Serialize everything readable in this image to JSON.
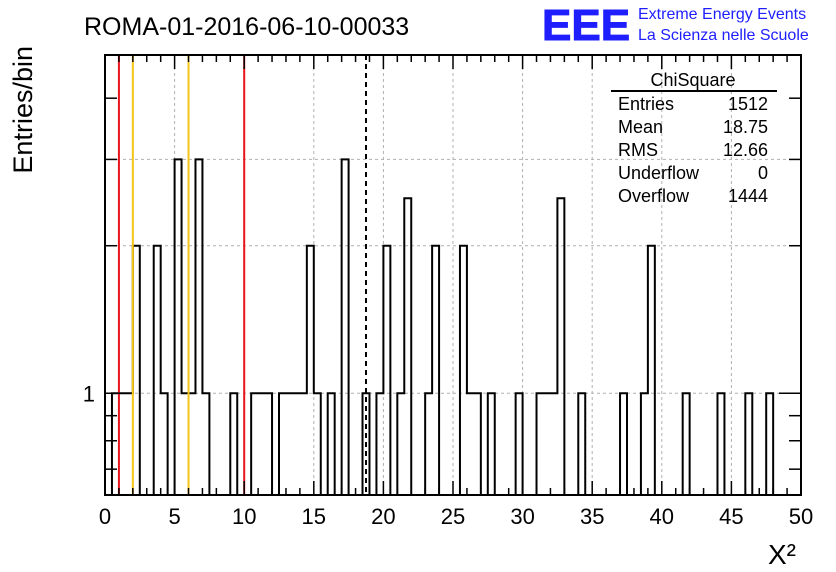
{
  "header": {
    "run_title": "ROMA-01-2016-06-10-00033",
    "logo_text": "EEE",
    "logo_line1": "Extreme Energy Events",
    "logo_line2": "La Scienza nelle Scuole"
  },
  "stats_box": {
    "title": "ChiSquare",
    "rows": [
      {
        "label": "Entries",
        "value": "1512"
      },
      {
        "label": "Mean",
        "value": "18.75"
      },
      {
        "label": "RMS",
        "value": "12.66"
      },
      {
        "label": "Underflow",
        "value": "0"
      },
      {
        "label": "Overflow",
        "value": "1444"
      }
    ]
  },
  "colors": {
    "red_line": "#e8141c",
    "yellow_line": "#f5c518",
    "logo_blue": "#1e1eff",
    "grid": "#b0b0b0"
  },
  "chart_data": {
    "type": "histogram",
    "ylabel": "Entries/bin",
    "xlabel": "X²",
    "xlim": [
      0,
      50
    ],
    "yscale": "log",
    "ylim": [
      0.62,
      4.9
    ],
    "y_tick_label": "1",
    "x_tick_labels": [
      "0",
      "5",
      "10",
      "15",
      "20",
      "25",
      "30",
      "35",
      "40",
      "45",
      "50"
    ],
    "bin_width": 0.5,
    "grid": true,
    "bins": [
      {
        "x": 0.5,
        "y": 1
      },
      {
        "x": 1.0,
        "y": 1
      },
      {
        "x": 1.5,
        "y": 1
      },
      {
        "x": 2.0,
        "y": 2
      },
      {
        "x": 3.5,
        "y": 2
      },
      {
        "x": 4.0,
        "y": 1
      },
      {
        "x": 5.0,
        "y": 3
      },
      {
        "x": 5.5,
        "y": 1
      },
      {
        "x": 6.0,
        "y": 1
      },
      {
        "x": 6.5,
        "y": 3
      },
      {
        "x": 7.0,
        "y": 1
      },
      {
        "x": 9.0,
        "y": 1
      },
      {
        "x": 10.5,
        "y": 1
      },
      {
        "x": 11.0,
        "y": 1
      },
      {
        "x": 11.5,
        "y": 1
      },
      {
        "x": 12.5,
        "y": 1
      },
      {
        "x": 13.0,
        "y": 1
      },
      {
        "x": 13.5,
        "y": 1
      },
      {
        "x": 14.0,
        "y": 1
      },
      {
        "x": 14.5,
        "y": 2
      },
      {
        "x": 15.0,
        "y": 1
      },
      {
        "x": 16.0,
        "y": 1
      },
      {
        "x": 17.0,
        "y": 3
      },
      {
        "x": 18.5,
        "y": 1
      },
      {
        "x": 19.5,
        "y": 1
      },
      {
        "x": 20.0,
        "y": 2
      },
      {
        "x": 21.0,
        "y": 1
      },
      {
        "x": 21.5,
        "y": 2.5
      },
      {
        "x": 23.0,
        "y": 1
      },
      {
        "x": 23.5,
        "y": 2
      },
      {
        "x": 25.5,
        "y": 2
      },
      {
        "x": 26.0,
        "y": 1
      },
      {
        "x": 26.5,
        "y": 1
      },
      {
        "x": 27.5,
        "y": 1
      },
      {
        "x": 29.5,
        "y": 1
      },
      {
        "x": 31.0,
        "y": 1
      },
      {
        "x": 31.5,
        "y": 1
      },
      {
        "x": 32.0,
        "y": 1
      },
      {
        "x": 32.5,
        "y": 2.5
      },
      {
        "x": 34.0,
        "y": 1
      },
      {
        "x": 37.0,
        "y": 1
      },
      {
        "x": 38.5,
        "y": 1
      },
      {
        "x": 39.0,
        "y": 2
      },
      {
        "x": 41.5,
        "y": 1
      },
      {
        "x": 44.0,
        "y": 1
      },
      {
        "x": 46.0,
        "y": 1
      },
      {
        "x": 47.5,
        "y": 1
      }
    ],
    "vertical_lines": [
      {
        "x": 1,
        "color": "red"
      },
      {
        "x": 2,
        "color": "yellow"
      },
      {
        "x": 6,
        "color": "yellow"
      },
      {
        "x": 10,
        "color": "red"
      },
      {
        "x": 18.75,
        "color": "black-dashed"
      }
    ]
  }
}
